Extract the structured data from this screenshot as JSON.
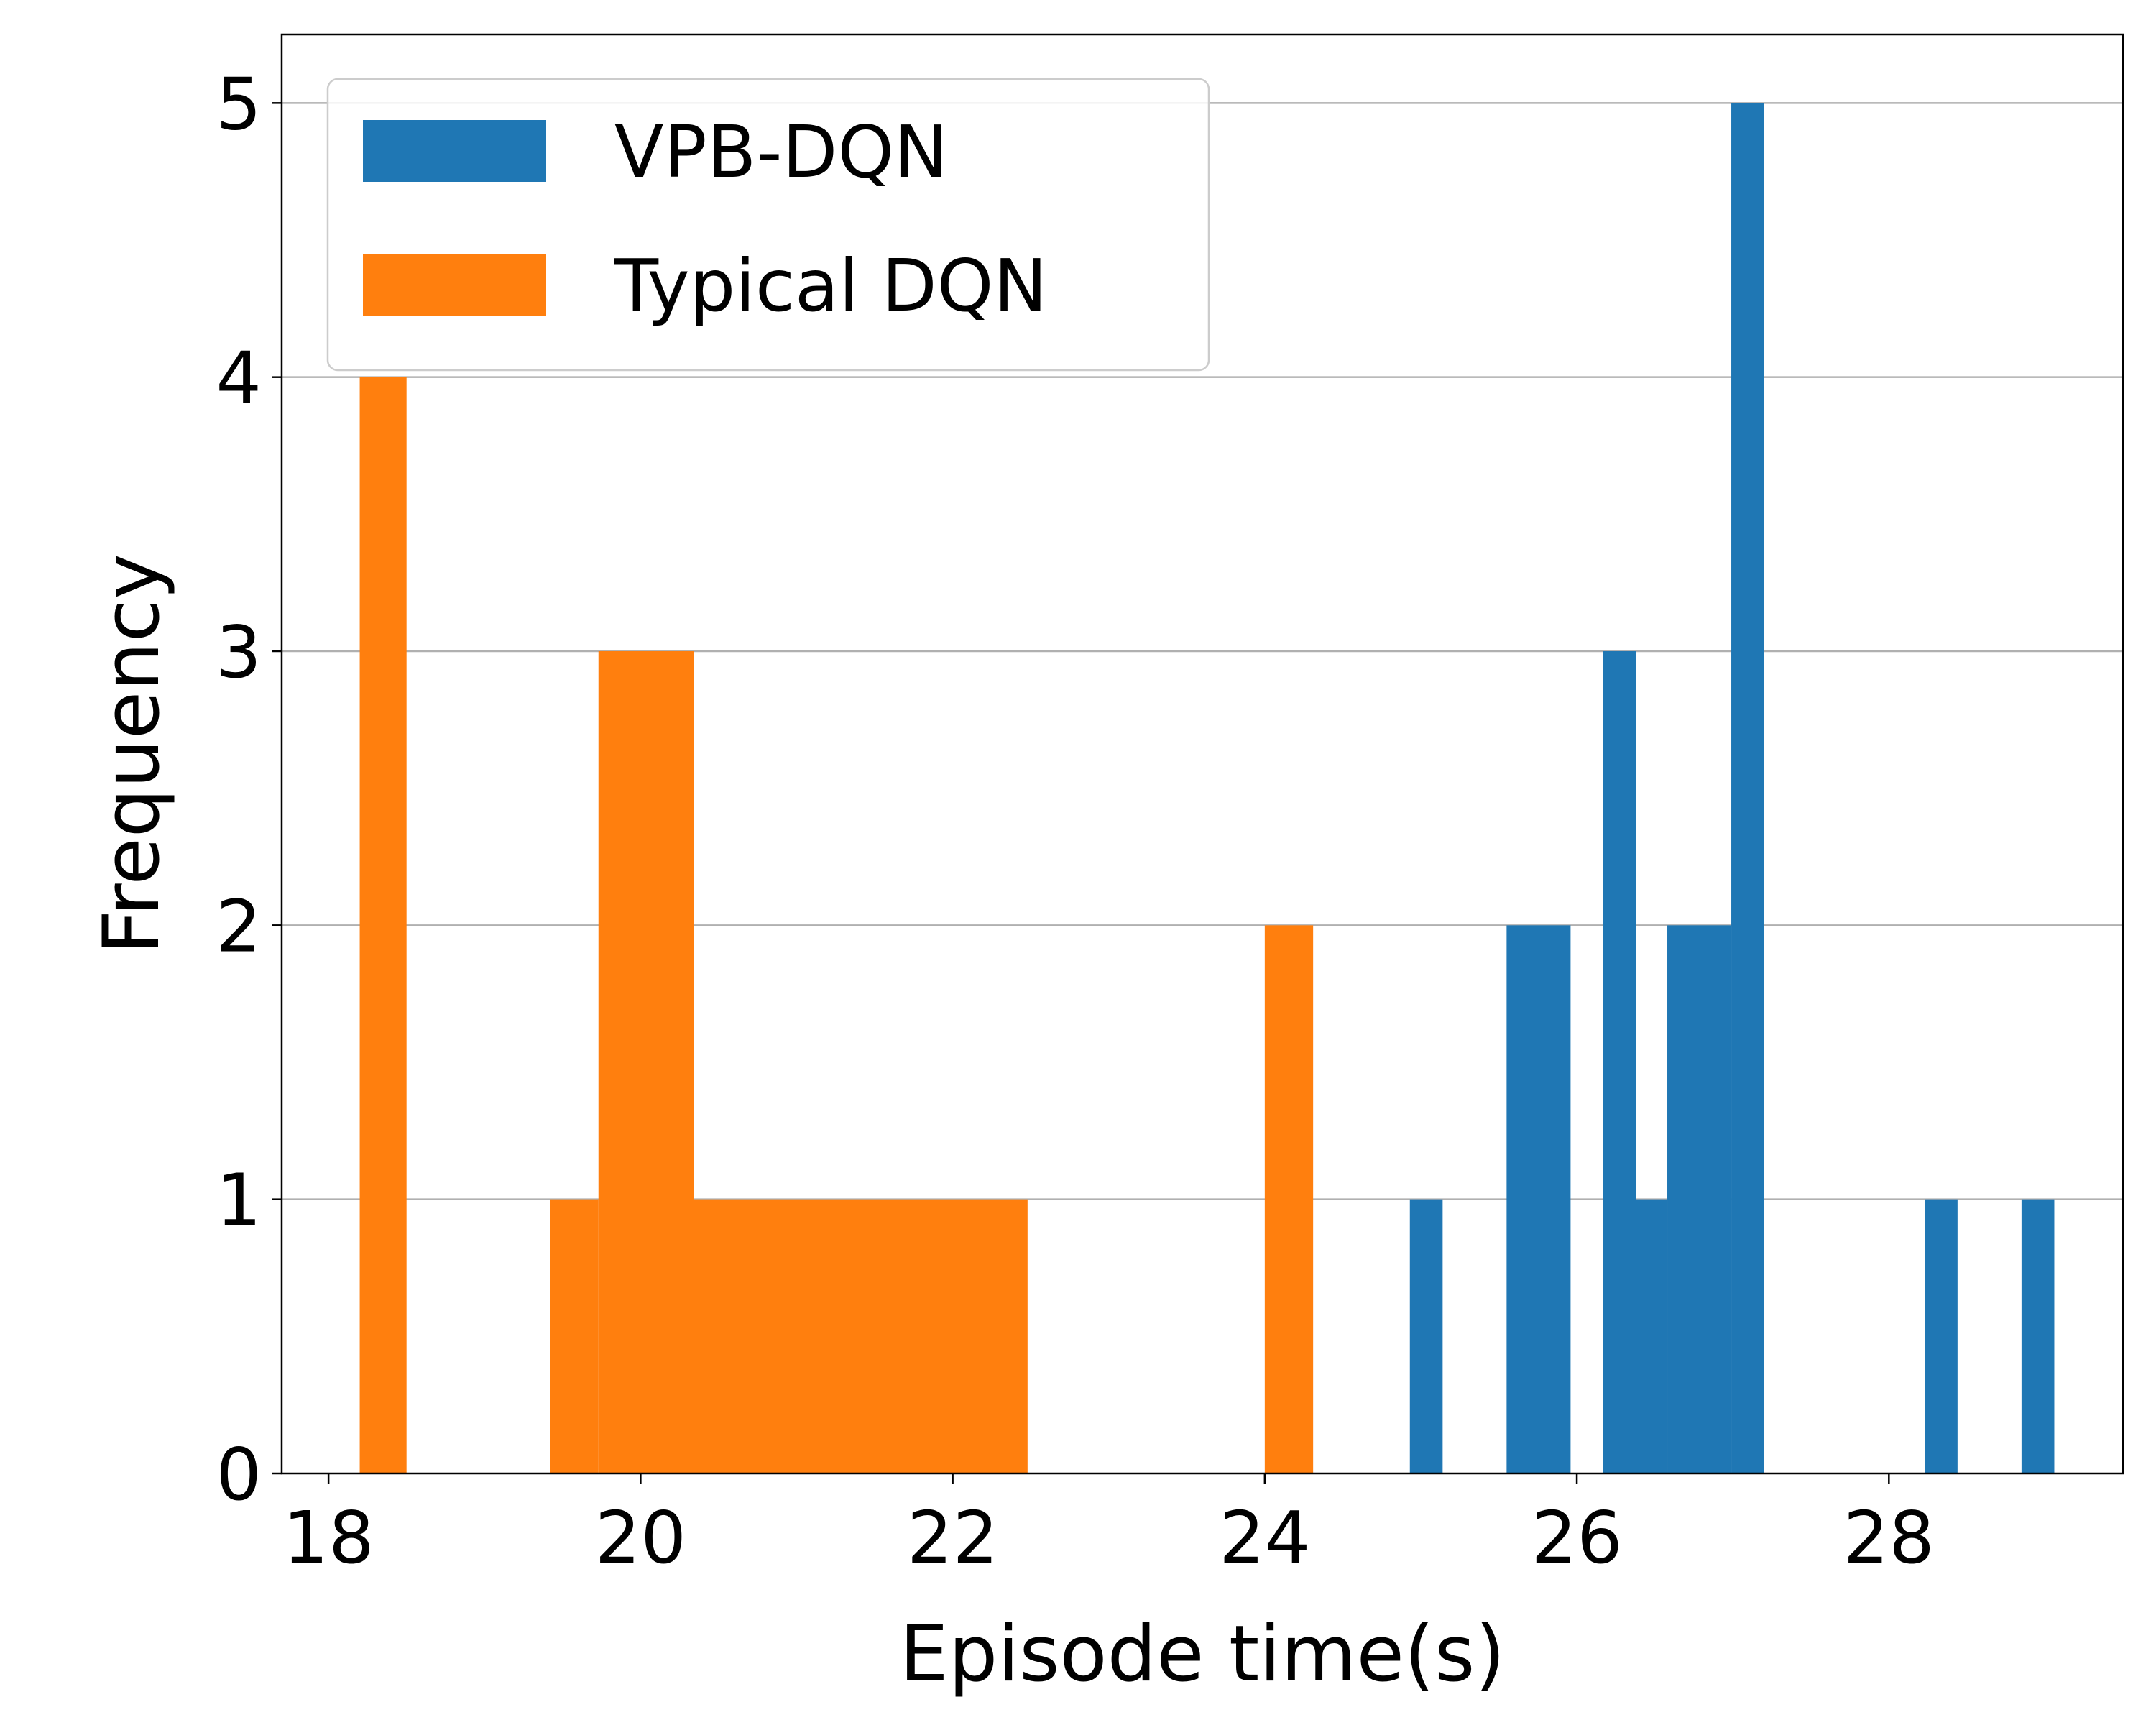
{
  "chart_data": {
    "type": "histogram",
    "xlabel": "Episode time(s)",
    "ylabel": "Frequency",
    "xlim": [
      17.7,
      29.5
    ],
    "ylim": [
      0,
      5.25
    ],
    "xticks": [
      18,
      20,
      22,
      24,
      26,
      28
    ],
    "yticks": [
      0,
      1,
      2,
      3,
      4,
      5
    ],
    "grid": "horizontal",
    "legend_position": "top-left",
    "series": [
      {
        "name": "VPB-DQN",
        "color": "#1f77b4",
        "bins": [
          {
            "x0": 24.93,
            "x1": 25.14,
            "count": 1
          },
          {
            "x0": 25.55,
            "x1": 25.96,
            "count": 2
          },
          {
            "x0": 26.17,
            "x1": 26.38,
            "count": 3
          },
          {
            "x0": 26.38,
            "x1": 26.58,
            "count": 1
          },
          {
            "x0": 26.58,
            "x1": 26.99,
            "count": 2
          },
          {
            "x0": 26.99,
            "x1": 27.2,
            "count": 5
          },
          {
            "x0": 28.23,
            "x1": 28.44,
            "count": 1
          },
          {
            "x0": 28.85,
            "x1": 29.06,
            "count": 1
          }
        ]
      },
      {
        "name": "Typical DQN",
        "color": "#ff7f0e",
        "bins": [
          {
            "x0": 18.2,
            "x1": 18.5,
            "count": 4
          },
          {
            "x0": 19.42,
            "x1": 19.73,
            "count": 1
          },
          {
            "x0": 19.73,
            "x1": 20.34,
            "count": 3
          },
          {
            "x0": 20.34,
            "x1": 22.48,
            "count": 1
          },
          {
            "x0": 24.0,
            "x1": 24.31,
            "count": 2
          }
        ]
      }
    ]
  }
}
